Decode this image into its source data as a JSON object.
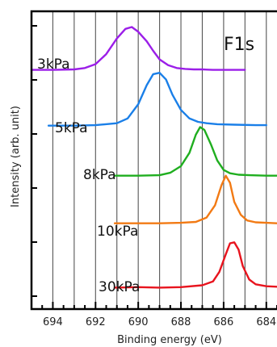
{
  "chart_data": {
    "type": "line",
    "title": "F1s",
    "xlabel": "Binding energy (eV)",
    "ylabel": "Intensity (arb. unit)",
    "x_reversed": true,
    "xlim": [
      695,
      683.5
    ],
    "xticks": [
      694,
      692,
      690,
      688,
      686,
      684
    ],
    "grid": "vertical",
    "series": [
      {
        "name": "3kPa",
        "color": "#9b1ee8",
        "x": [
          695,
          694,
          693,
          692.5,
          692,
          691.5,
          691,
          690.6,
          690.3,
          690,
          689.6,
          689.3,
          689,
          688.6,
          688.2,
          687.8,
          687.4,
          687,
          686.5,
          686,
          685.5,
          685
        ],
        "y": [
          5.72,
          5.72,
          5.73,
          5.76,
          5.84,
          6.05,
          6.38,
          6.58,
          6.62,
          6.52,
          6.32,
          6.12,
          5.94,
          5.82,
          5.76,
          5.74,
          5.73,
          5.73,
          5.72,
          5.72,
          5.72,
          5.72
        ]
      },
      {
        "name": "5kPa",
        "color": "#1a7fe8",
        "x": [
          694.2,
          693,
          692,
          691,
          690.5,
          690,
          689.6,
          689.3,
          689,
          688.7,
          688.4,
          688,
          687.6,
          687.2,
          686.8,
          686.3,
          685.5,
          684.5,
          684
        ],
        "y": [
          4.55,
          4.55,
          4.56,
          4.6,
          4.7,
          5.0,
          5.4,
          5.63,
          5.66,
          5.52,
          5.2,
          4.88,
          4.7,
          4.63,
          4.6,
          4.58,
          4.57,
          4.56,
          4.56
        ]
      },
      {
        "name": "8kPa",
        "color": "#1fae1f",
        "x": [
          691.1,
          690,
          689,
          688.5,
          688,
          687.6,
          687.3,
          687.1,
          686.9,
          686.6,
          686.3,
          686,
          685.7,
          685.3,
          684.8,
          684,
          683.5
        ],
        "y": [
          3.5,
          3.5,
          3.51,
          3.56,
          3.7,
          3.98,
          4.36,
          4.52,
          4.46,
          4.16,
          3.82,
          3.62,
          3.55,
          3.52,
          3.51,
          3.5,
          3.5
        ]
      },
      {
        "name": "10kPa",
        "color": "#f27a14",
        "x": [
          691.1,
          690,
          689,
          688,
          687.3,
          686.8,
          686.4,
          686.1,
          685.9,
          685.7,
          685.5,
          685.2,
          684.9,
          684.5,
          684,
          683.5
        ],
        "y": [
          2.5,
          2.5,
          2.5,
          2.51,
          2.53,
          2.62,
          2.88,
          3.3,
          3.5,
          3.35,
          2.95,
          2.68,
          2.56,
          2.52,
          2.51,
          2.5
        ]
      },
      {
        "name": "30kPa",
        "color": "#e8141e",
        "x": [
          691.1,
          690,
          689,
          688,
          687,
          686.5,
          686.2,
          685.9,
          685.7,
          685.5,
          685.3,
          685.1,
          684.8,
          684.5,
          684,
          683.5
        ],
        "y": [
          1.15,
          1.16,
          1.15,
          1.16,
          1.2,
          1.28,
          1.48,
          1.85,
          2.08,
          2.1,
          1.95,
          1.6,
          1.32,
          1.22,
          1.18,
          1.17
        ]
      }
    ]
  }
}
